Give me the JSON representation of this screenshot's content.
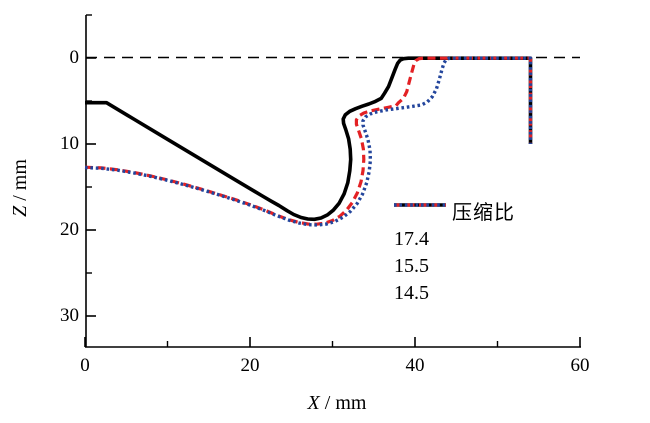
{
  "figure": {
    "background": "#ffffff"
  },
  "chart_data": {
    "type": "line",
    "title": "",
    "xlabel": "X / mm",
    "ylabel": "Z / mm",
    "x_axis": {
      "label_var": "X",
      "label_unit": " / mm",
      "min": 0,
      "max": 60,
      "major_ticks": [
        {
          "value": 0,
          "label": "0"
        },
        {
          "value": 20,
          "label": "20"
        },
        {
          "value": 40,
          "label": "40"
        },
        {
          "value": 60,
          "label": "60"
        }
      ],
      "minor_ticks": [
        10,
        30,
        50
      ]
    },
    "z_axis": {
      "label_var": "Z",
      "label_unit": " / mm",
      "min": -5,
      "max": 33.5,
      "inverted": true,
      "major_ticks": [
        {
          "value": 0,
          "label": "0"
        },
        {
          "value": 10,
          "label": "10"
        },
        {
          "value": 20,
          "label": "20"
        },
        {
          "value": 30,
          "label": "30"
        }
      ],
      "minor_ticks": [
        -5,
        5,
        15,
        25
      ]
    },
    "reference_line": {
      "z": 0,
      "style": "dashed",
      "color": "#000000"
    },
    "legend": {
      "title": "压缩比",
      "position": "right-middle"
    },
    "series": [
      {
        "name": "17.4",
        "color": "#000000",
        "line_style": "solid",
        "points": [
          [
            0,
            5.2
          ],
          [
            2.6,
            5.2
          ],
          [
            6,
            7.15
          ],
          [
            10,
            9.45
          ],
          [
            14,
            11.75
          ],
          [
            18,
            14.05
          ],
          [
            21.5,
            16.05
          ],
          [
            22.5,
            16.6
          ],
          [
            23.5,
            17.15
          ],
          [
            24.5,
            17.75
          ],
          [
            25.3,
            18.2
          ],
          [
            26.2,
            18.55
          ],
          [
            27.0,
            18.72
          ],
          [
            27.8,
            18.75
          ],
          [
            28.6,
            18.6
          ],
          [
            29.4,
            18.25
          ],
          [
            30.1,
            17.7
          ],
          [
            30.8,
            16.9
          ],
          [
            31.4,
            15.8
          ],
          [
            31.85,
            14.5
          ],
          [
            32.1,
            13.1
          ],
          [
            32.2,
            11.8
          ],
          [
            32.15,
            10.6
          ],
          [
            31.95,
            9.4
          ],
          [
            31.6,
            8.3
          ],
          [
            31.35,
            7.6
          ],
          [
            31.3,
            7.1
          ],
          [
            31.55,
            6.6
          ],
          [
            32.1,
            6.2
          ],
          [
            32.8,
            5.9
          ],
          [
            33.6,
            5.6
          ],
          [
            34.4,
            5.35
          ],
          [
            35.2,
            5.05
          ],
          [
            35.9,
            4.7
          ],
          [
            36.3,
            4.1
          ],
          [
            36.8,
            3.3
          ],
          [
            37.2,
            2.3
          ],
          [
            37.6,
            1.3
          ],
          [
            37.9,
            0.6
          ],
          [
            38.2,
            0.25
          ],
          [
            38.6,
            0.08
          ],
          [
            39.2,
            0.02
          ],
          [
            54.0,
            0.02
          ],
          [
            54.0,
            10.0
          ]
        ]
      },
      {
        "name": "15.5",
        "color": "#e32124",
        "line_style": "dashed",
        "points": [
          [
            0,
            12.7
          ],
          [
            2,
            12.78
          ],
          [
            4,
            13.0
          ],
          [
            6,
            13.33
          ],
          [
            8,
            13.72
          ],
          [
            10,
            14.17
          ],
          [
            12,
            14.68
          ],
          [
            14,
            15.22
          ],
          [
            16,
            15.8
          ],
          [
            18,
            16.4
          ],
          [
            20,
            17.05
          ],
          [
            21.8,
            17.7
          ],
          [
            23.3,
            18.3
          ],
          [
            24.7,
            18.8
          ],
          [
            25.9,
            19.12
          ],
          [
            27.0,
            19.3
          ],
          [
            28.1,
            19.32
          ],
          [
            29.1,
            19.2
          ],
          [
            30.0,
            18.9
          ],
          [
            30.9,
            18.4
          ],
          [
            31.7,
            17.7
          ],
          [
            32.4,
            16.8
          ],
          [
            33.0,
            15.7
          ],
          [
            33.45,
            14.4
          ],
          [
            33.7,
            13.1
          ],
          [
            33.8,
            11.8
          ],
          [
            33.75,
            10.6
          ],
          [
            33.5,
            9.4
          ],
          [
            33.15,
            8.4
          ],
          [
            32.9,
            7.7
          ],
          [
            32.9,
            7.2
          ],
          [
            33.2,
            6.75
          ],
          [
            33.8,
            6.4
          ],
          [
            34.6,
            6.15
          ],
          [
            35.6,
            5.95
          ],
          [
            36.7,
            5.75
          ],
          [
            37.7,
            5.55
          ],
          [
            38.0,
            5.2
          ],
          [
            38.6,
            4.7
          ],
          [
            39.0,
            3.9
          ],
          [
            39.3,
            2.8
          ],
          [
            39.6,
            1.7
          ],
          [
            39.85,
            0.8
          ],
          [
            40.1,
            0.3
          ],
          [
            40.5,
            0.07
          ],
          [
            41.0,
            0.02
          ],
          [
            54.0,
            0.02
          ],
          [
            54.0,
            10.0
          ]
        ]
      },
      {
        "name": "14.5",
        "color": "#23459c",
        "line_style": "dotted",
        "points": [
          [
            0,
            12.75
          ],
          [
            2,
            12.83
          ],
          [
            4,
            13.05
          ],
          [
            6,
            13.38
          ],
          [
            8,
            13.77
          ],
          [
            10,
            14.22
          ],
          [
            12,
            14.73
          ],
          [
            14,
            15.27
          ],
          [
            16,
            15.85
          ],
          [
            18,
            16.45
          ],
          [
            20,
            17.1
          ],
          [
            21.8,
            17.75
          ],
          [
            23.3,
            18.35
          ],
          [
            24.7,
            18.85
          ],
          [
            25.9,
            19.18
          ],
          [
            27.0,
            19.38
          ],
          [
            28.2,
            19.42
          ],
          [
            29.3,
            19.3
          ],
          [
            30.3,
            19.0
          ],
          [
            31.3,
            18.5
          ],
          [
            32.2,
            17.8
          ],
          [
            33.0,
            16.9
          ],
          [
            33.65,
            15.8
          ],
          [
            34.15,
            14.5
          ],
          [
            34.45,
            13.2
          ],
          [
            34.6,
            11.9
          ],
          [
            34.55,
            10.7
          ],
          [
            34.3,
            9.5
          ],
          [
            33.95,
            8.5
          ],
          [
            33.7,
            7.8
          ],
          [
            33.7,
            7.3
          ],
          [
            34.0,
            6.85
          ],
          [
            34.6,
            6.5
          ],
          [
            35.4,
            6.25
          ],
          [
            36.5,
            6.05
          ],
          [
            38.0,
            5.85
          ],
          [
            39.5,
            5.65
          ],
          [
            40.8,
            5.45
          ],
          [
            41.5,
            5.1
          ],
          [
            42.1,
            4.5
          ],
          [
            42.6,
            3.6
          ],
          [
            42.95,
            2.5
          ],
          [
            43.25,
            1.4
          ],
          [
            43.5,
            0.6
          ],
          [
            43.75,
            0.22
          ],
          [
            44.1,
            0.05
          ],
          [
            44.6,
            0.02
          ],
          [
            54.0,
            0.02
          ],
          [
            54.0,
            10.0
          ]
        ]
      }
    ]
  }
}
